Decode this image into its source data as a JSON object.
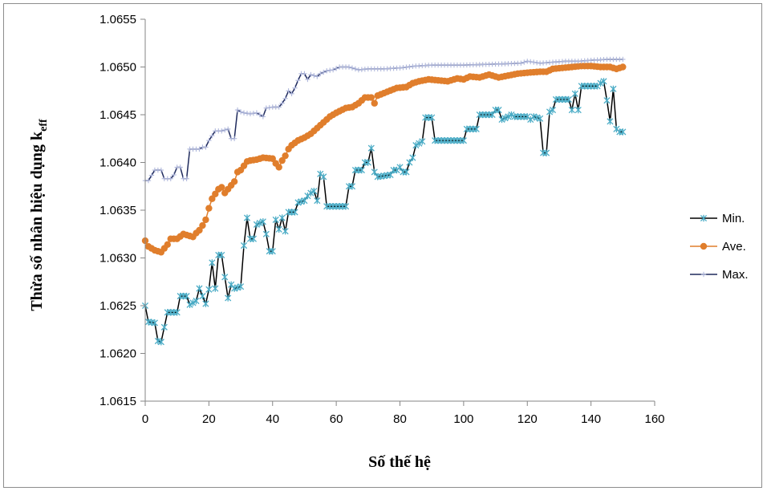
{
  "chart_data": {
    "type": "line",
    "title": "",
    "xlabel": "Số thế hệ",
    "ylabel_main": "Thừa số nhân hiệu dụng k",
    "ylabel_sub": "eff",
    "xlim": [
      0,
      160
    ],
    "ylim": [
      1.0615,
      1.0655
    ],
    "xticks": [
      0,
      20,
      40,
      60,
      80,
      100,
      120,
      140,
      160
    ],
    "yticks": [
      "1.0615",
      "1.0620",
      "1.0625",
      "1.0630",
      "1.0635",
      "1.0640",
      "1.0645",
      "1.0650",
      "1.0655"
    ],
    "legend_position": "right",
    "grid": false,
    "series": [
      {
        "name": "Min.",
        "color": "#000000",
        "marker_color": "#4bacc6",
        "marker": "star",
        "keypoints": [
          [
            0,
            1.0625
          ],
          [
            1,
            1.06233
          ],
          [
            3,
            1.06232
          ],
          [
            4,
            1.06213
          ],
          [
            5,
            1.06212
          ],
          [
            7,
            1.06243
          ],
          [
            10,
            1.06243
          ],
          [
            11,
            1.0626
          ],
          [
            13,
            1.0626
          ],
          [
            14,
            1.06251
          ],
          [
            16,
            1.06255
          ],
          [
            17,
            1.06268
          ],
          [
            18,
            1.0626
          ],
          [
            19,
            1.06252
          ],
          [
            20,
            1.06267
          ],
          [
            21,
            1.06295
          ],
          [
            22,
            1.06268
          ],
          [
            23,
            1.06303
          ],
          [
            24,
            1.06303
          ],
          [
            25,
            1.0628
          ],
          [
            26,
            1.06258
          ],
          [
            27,
            1.06272
          ],
          [
            28,
            1.06268
          ],
          [
            30,
            1.0627
          ],
          [
            31,
            1.06313
          ],
          [
            32,
            1.06342
          ],
          [
            33,
            1.0632
          ],
          [
            34,
            1.0632
          ],
          [
            35,
            1.06335
          ],
          [
            37,
            1.06338
          ],
          [
            38,
            1.06325
          ],
          [
            39,
            1.06307
          ],
          [
            40,
            1.06307
          ],
          [
            41,
            1.0634
          ],
          [
            42,
            1.0633
          ],
          [
            43,
            1.06342
          ],
          [
            44,
            1.06328
          ],
          [
            45,
            1.06348
          ],
          [
            47,
            1.06348
          ],
          [
            48,
            1.06358
          ],
          [
            50,
            1.0636
          ],
          [
            51,
            1.06365
          ],
          [
            52,
            1.06368
          ],
          [
            53,
            1.0637
          ],
          [
            54,
            1.0636
          ],
          [
            55,
            1.06388
          ],
          [
            56,
            1.06385
          ],
          [
            57,
            1.06354
          ],
          [
            63,
            1.06354
          ],
          [
            64,
            1.06375
          ],
          [
            65,
            1.06375
          ],
          [
            66,
            1.06392
          ],
          [
            68,
            1.06392
          ],
          [
            69,
            1.064
          ],
          [
            70,
            1.064
          ],
          [
            71,
            1.06415
          ],
          [
            72,
            1.0639
          ],
          [
            73,
            1.06385
          ],
          [
            77,
            1.06387
          ],
          [
            78,
            1.06392
          ],
          [
            79,
            1.06392
          ],
          [
            80,
            1.06395
          ],
          [
            81,
            1.0639
          ],
          [
            82,
            1.0639
          ],
          [
            83,
            1.064
          ],
          [
            84,
            1.06405
          ],
          [
            85,
            1.06418
          ],
          [
            87,
            1.06422
          ],
          [
            88,
            1.06447
          ],
          [
            90,
            1.06447
          ],
          [
            91,
            1.06423
          ],
          [
            100,
            1.06423
          ],
          [
            101,
            1.06435
          ],
          [
            104,
            1.06435
          ],
          [
            105,
            1.0645
          ],
          [
            109,
            1.0645
          ],
          [
            110,
            1.06455
          ],
          [
            111,
            1.06455
          ],
          [
            112,
            1.06445
          ],
          [
            114,
            1.06448
          ],
          [
            115,
            1.0645
          ],
          [
            116,
            1.06448
          ],
          [
            117,
            1.06448
          ],
          [
            118,
            1.06448
          ],
          [
            119,
            1.06448
          ],
          [
            120,
            1.06448
          ],
          [
            121,
            1.06445
          ],
          [
            122,
            1.06448
          ],
          [
            124,
            1.06446
          ],
          [
            125,
            1.0641
          ],
          [
            126,
            1.0641
          ],
          [
            127,
            1.06453
          ],
          [
            128,
            1.06455
          ],
          [
            129,
            1.06466
          ],
          [
            133,
            1.06466
          ],
          [
            134,
            1.06455
          ],
          [
            135,
            1.06472
          ],
          [
            136,
            1.06455
          ],
          [
            137,
            1.0648
          ],
          [
            142,
            1.0648
          ],
          [
            143,
            1.06483
          ],
          [
            144,
            1.06485
          ],
          [
            145,
            1.06465
          ],
          [
            146,
            1.06443
          ],
          [
            147,
            1.06477
          ],
          [
            148,
            1.06435
          ],
          [
            149,
            1.06432
          ],
          [
            150,
            1.06432
          ]
        ]
      },
      {
        "name": "Ave.",
        "color": "#e07e2c",
        "marker_color": "#e07e2c",
        "marker": "circle",
        "keypoints": [
          [
            0,
            1.06318
          ],
          [
            1,
            1.06312
          ],
          [
            3,
            1.06308
          ],
          [
            5,
            1.06306
          ],
          [
            7,
            1.06314
          ],
          [
            8,
            1.0632
          ],
          [
            10,
            1.0632
          ],
          [
            12,
            1.06325
          ],
          [
            13,
            1.06324
          ],
          [
            15,
            1.06322
          ],
          [
            16,
            1.06326
          ],
          [
            17,
            1.06329
          ],
          [
            18,
            1.06334
          ],
          [
            19,
            1.0634
          ],
          [
            20,
            1.06352
          ],
          [
            21,
            1.06362
          ],
          [
            23,
            1.06372
          ],
          [
            24,
            1.06374
          ],
          [
            25,
            1.06368
          ],
          [
            26,
            1.06372
          ],
          [
            28,
            1.0638
          ],
          [
            29,
            1.0639
          ],
          [
            30,
            1.06392
          ],
          [
            32,
            1.06401
          ],
          [
            33,
            1.06402
          ],
          [
            35,
            1.06403
          ],
          [
            37,
            1.06405
          ],
          [
            40,
            1.06404
          ],
          [
            41,
            1.06399
          ],
          [
            42,
            1.06395
          ],
          [
            43,
            1.06402
          ],
          [
            44,
            1.06407
          ],
          [
            45,
            1.06414
          ],
          [
            46,
            1.06418
          ],
          [
            48,
            1.06423
          ],
          [
            50,
            1.06426
          ],
          [
            52,
            1.0643
          ],
          [
            54,
            1.06436
          ],
          [
            56,
            1.06442
          ],
          [
            58,
            1.06448
          ],
          [
            60,
            1.06452
          ],
          [
            63,
            1.06457
          ],
          [
            65,
            1.06458
          ],
          [
            67,
            1.06462
          ],
          [
            69,
            1.06468
          ],
          [
            71,
            1.06468
          ],
          [
            72,
            1.06462
          ],
          [
            73,
            1.0647
          ],
          [
            76,
            1.06474
          ],
          [
            79,
            1.06478
          ],
          [
            82,
            1.06479
          ],
          [
            84,
            1.06483
          ],
          [
            86,
            1.06485
          ],
          [
            89,
            1.06487
          ],
          [
            92,
            1.06486
          ],
          [
            95,
            1.06485
          ],
          [
            98,
            1.06488
          ],
          [
            100,
            1.06487
          ],
          [
            102,
            1.0649
          ],
          [
            105,
            1.06489
          ],
          [
            108,
            1.06492
          ],
          [
            111,
            1.06489
          ],
          [
            114,
            1.06491
          ],
          [
            117,
            1.06493
          ],
          [
            120,
            1.06494
          ],
          [
            124,
            1.06495
          ],
          [
            126,
            1.06495
          ],
          [
            128,
            1.06498
          ],
          [
            131,
            1.06499
          ],
          [
            134,
            1.065
          ],
          [
            137,
            1.06501
          ],
          [
            140,
            1.06501
          ],
          [
            143,
            1.065
          ],
          [
            146,
            1.065
          ],
          [
            148,
            1.06498
          ],
          [
            150,
            1.065
          ]
        ]
      },
      {
        "name": "Max.",
        "color": "#1f2a5c",
        "marker_color": "#b0b8dc",
        "marker": "plus",
        "keypoints": [
          [
            0,
            1.06381
          ],
          [
            1,
            1.06381
          ],
          [
            3,
            1.06392
          ],
          [
            5,
            1.06392
          ],
          [
            6,
            1.06383
          ],
          [
            7,
            1.06383
          ],
          [
            8,
            1.06383
          ],
          [
            9,
            1.06387
          ],
          [
            10,
            1.06395
          ],
          [
            11,
            1.06395
          ],
          [
            12,
            1.06383
          ],
          [
            13,
            1.06383
          ],
          [
            14,
            1.06414
          ],
          [
            17,
            1.06414
          ],
          [
            18,
            1.06416
          ],
          [
            19,
            1.06416
          ],
          [
            20,
            1.06423
          ],
          [
            22,
            1.06433
          ],
          [
            24,
            1.06433
          ],
          [
            26,
            1.06435
          ],
          [
            27,
            1.06425
          ],
          [
            28,
            1.06425
          ],
          [
            29,
            1.06455
          ],
          [
            30,
            1.06453
          ],
          [
            31,
            1.06452
          ],
          [
            33,
            1.06451
          ],
          [
            35,
            1.06452
          ],
          [
            37,
            1.06448
          ],
          [
            38,
            1.06457
          ],
          [
            40,
            1.06458
          ],
          [
            42,
            1.06458
          ],
          [
            43,
            1.06462
          ],
          [
            44,
            1.06467
          ],
          [
            45,
            1.06475
          ],
          [
            46,
            1.06472
          ],
          [
            47,
            1.06478
          ],
          [
            48,
            1.06486
          ],
          [
            49,
            1.06493
          ],
          [
            50,
            1.06493
          ],
          [
            51,
            1.06487
          ],
          [
            52,
            1.06492
          ],
          [
            54,
            1.0649
          ],
          [
            55,
            1.06493
          ],
          [
            57,
            1.06496
          ],
          [
            59,
            1.06497
          ],
          [
            61,
            1.065
          ],
          [
            64,
            1.065
          ],
          [
            67,
            1.06497
          ],
          [
            70,
            1.06498
          ],
          [
            75,
            1.06498
          ],
          [
            80,
            1.06499
          ],
          [
            85,
            1.06501
          ],
          [
            90,
            1.06502
          ],
          [
            100,
            1.06502
          ],
          [
            110,
            1.06503
          ],
          [
            118,
            1.06504
          ],
          [
            120,
            1.06506
          ],
          [
            124,
            1.06504
          ],
          [
            128,
            1.06505
          ],
          [
            132,
            1.06506
          ],
          [
            136,
            1.06506
          ],
          [
            140,
            1.06507
          ],
          [
            145,
            1.06508
          ],
          [
            150,
            1.06508
          ]
        ]
      }
    ]
  }
}
